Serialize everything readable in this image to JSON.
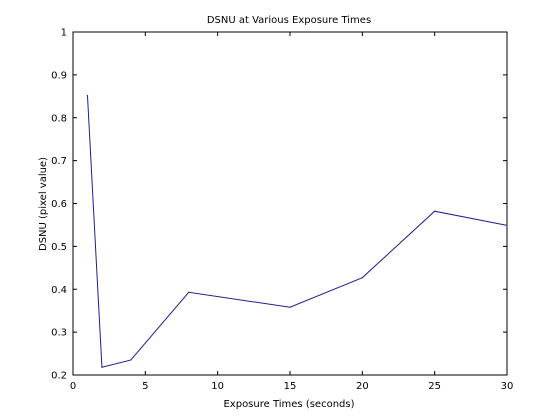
{
  "chart_data": {
    "type": "line",
    "title": "DSNU at Various Exposure Times",
    "xlabel": "Exposure Times (seconds)",
    "ylabel": "DSNU (pixel value)",
    "xlim": [
      0,
      30
    ],
    "ylim": [
      0.2,
      1
    ],
    "xticks": [
      "0",
      "5",
      "10",
      "15",
      "20",
      "25",
      "30"
    ],
    "yticks": [
      "0.2",
      "0.3",
      "0.4",
      "0.5",
      "0.6",
      "0.7",
      "0.8",
      "0.9",
      "1"
    ],
    "grid": false,
    "series": [
      {
        "x": [
          1,
          2,
          4,
          8,
          15,
          20,
          25,
          30
        ],
        "y": [
          0.852,
          0.218,
          0.235,
          0.393,
          0.358,
          0.427,
          0.582,
          0.549
        ],
        "color": "#1f1f8f"
      }
    ]
  }
}
